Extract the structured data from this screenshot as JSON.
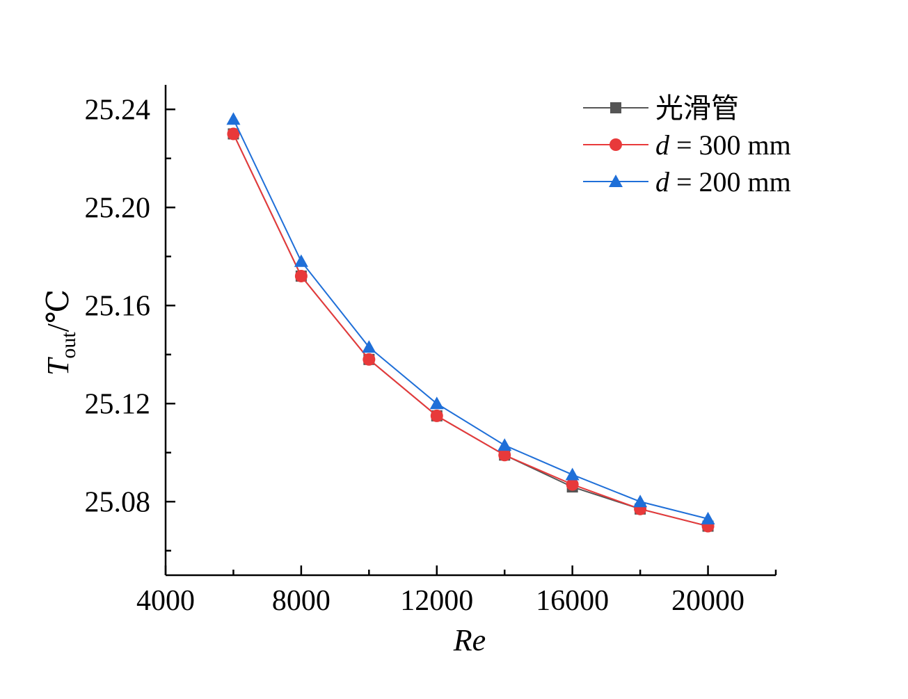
{
  "chart_data": {
    "type": "line",
    "xlabel": "Re",
    "ylabel": {
      "main": "T",
      "sub": "out",
      "unit": "/℃"
    },
    "xlim": [
      4000,
      22000
    ],
    "ylim": [
      25.05,
      25.25
    ],
    "xticks": [
      4000,
      8000,
      12000,
      16000,
      20000
    ],
    "xtick_labels": [
      "4000",
      "8000",
      "12000",
      "16000",
      "20000"
    ],
    "yticks": [
      25.08,
      25.12,
      25.16,
      25.2,
      25.24
    ],
    "ytick_labels": [
      "25.08",
      "25.12",
      "25.16",
      "25.20",
      "25.24"
    ],
    "grid": false,
    "legend_position": "top-right",
    "x": [
      6000,
      8000,
      10000,
      12000,
      14000,
      16000,
      18000,
      20000
    ],
    "series": [
      {
        "name": "光滑管",
        "legend_italic": "",
        "legend_rest": "光滑管",
        "color": "#555555",
        "marker": "square",
        "values": [
          25.23,
          25.172,
          25.138,
          25.115,
          25.099,
          25.086,
          25.077,
          25.07
        ]
      },
      {
        "name": "d = 300 mm",
        "legend_italic": "d",
        "legend_rest": " = 300 mm",
        "color": "#e8393a",
        "marker": "circle",
        "values": [
          25.23,
          25.172,
          25.138,
          25.115,
          25.099,
          25.087,
          25.077,
          25.07
        ]
      },
      {
        "name": "d = 200 mm",
        "legend_italic": "d",
        "legend_rest": " = 200 mm",
        "color": "#1f6fd8",
        "marker": "triangle",
        "values": [
          25.236,
          25.178,
          25.143,
          25.12,
          25.103,
          25.091,
          25.08,
          25.073
        ]
      }
    ]
  }
}
